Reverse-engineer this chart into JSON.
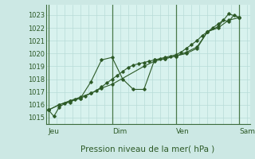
{
  "background_color": "#cce8e4",
  "plot_bg_color": "#d8f2ee",
  "grid_color": "#b8dcd8",
  "line_color": "#2d5a27",
  "marker_color": "#2d5a27",
  "xlabel": "Pression niveau de la mer( hPa )",
  "ylim_min": 1014.5,
  "ylim_max": 1023.8,
  "yticks": [
    1015,
    1016,
    1017,
    1018,
    1019,
    1020,
    1021,
    1022,
    1023
  ],
  "x_day_labels": [
    [
      "Jeu",
      0
    ],
    [
      "Dim",
      48
    ],
    [
      "Ven",
      96
    ],
    [
      "Sam",
      144
    ]
  ],
  "series1": [
    [
      0,
      1015.6
    ],
    [
      4,
      1015.1
    ],
    [
      8,
      1015.8
    ],
    [
      12,
      1016.1
    ],
    [
      16,
      1016.2
    ],
    [
      20,
      1016.4
    ],
    [
      24,
      1016.5
    ],
    [
      28,
      1016.7
    ],
    [
      32,
      1016.9
    ],
    [
      36,
      1017.1
    ],
    [
      40,
      1017.4
    ],
    [
      44,
      1017.7
    ],
    [
      48,
      1018.0
    ],
    [
      52,
      1018.3
    ],
    [
      56,
      1018.6
    ],
    [
      60,
      1018.9
    ],
    [
      64,
      1019.1
    ],
    [
      68,
      1019.2
    ],
    [
      72,
      1019.3
    ],
    [
      76,
      1019.4
    ],
    [
      80,
      1019.5
    ],
    [
      84,
      1019.6
    ],
    [
      88,
      1019.7
    ],
    [
      92,
      1019.8
    ],
    [
      96,
      1019.9
    ],
    [
      100,
      1020.1
    ],
    [
      104,
      1020.4
    ],
    [
      108,
      1020.7
    ],
    [
      112,
      1021.0
    ],
    [
      116,
      1021.4
    ],
    [
      120,
      1021.7
    ],
    [
      124,
      1022.0
    ],
    [
      128,
      1022.3
    ],
    [
      132,
      1022.6
    ],
    [
      136,
      1022.5
    ],
    [
      140,
      1023.0
    ],
    [
      144,
      1022.8
    ]
  ],
  "series2_x": [
    0,
    8,
    16,
    24,
    32,
    40,
    48,
    72,
    80,
    88,
    96,
    104,
    112,
    120,
    128,
    136,
    144
  ],
  "series2_y": [
    1015.6,
    1016.0,
    1016.3,
    1016.6,
    1016.9,
    1017.3,
    1017.6,
    1019.0,
    1019.4,
    1019.6,
    1019.8,
    1020.1,
    1020.5,
    1021.7,
    1022.0,
    1022.6,
    1022.8
  ],
  "series3_x": [
    0,
    8,
    16,
    24,
    32,
    40,
    48,
    56,
    64,
    72,
    80,
    88,
    96,
    104,
    112,
    120,
    128,
    136,
    144
  ],
  "series3_y": [
    1015.6,
    1016.0,
    1016.3,
    1016.5,
    1017.8,
    1019.5,
    1019.7,
    1018.0,
    1017.2,
    1017.2,
    1019.5,
    1019.6,
    1019.8,
    1020.0,
    1020.4,
    1021.7,
    1022.1,
    1023.1,
    1022.8
  ],
  "xlim": [
    -2,
    152
  ],
  "day_line_x": [
    0,
    48,
    96,
    144
  ],
  "day_line_color": "#4a7a4a",
  "tick_color": "#2d5a27",
  "spine_color": "#3a6a3a",
  "font_size_ytick": 6,
  "font_size_xlabel": 7.5,
  "font_size_day": 6.5
}
